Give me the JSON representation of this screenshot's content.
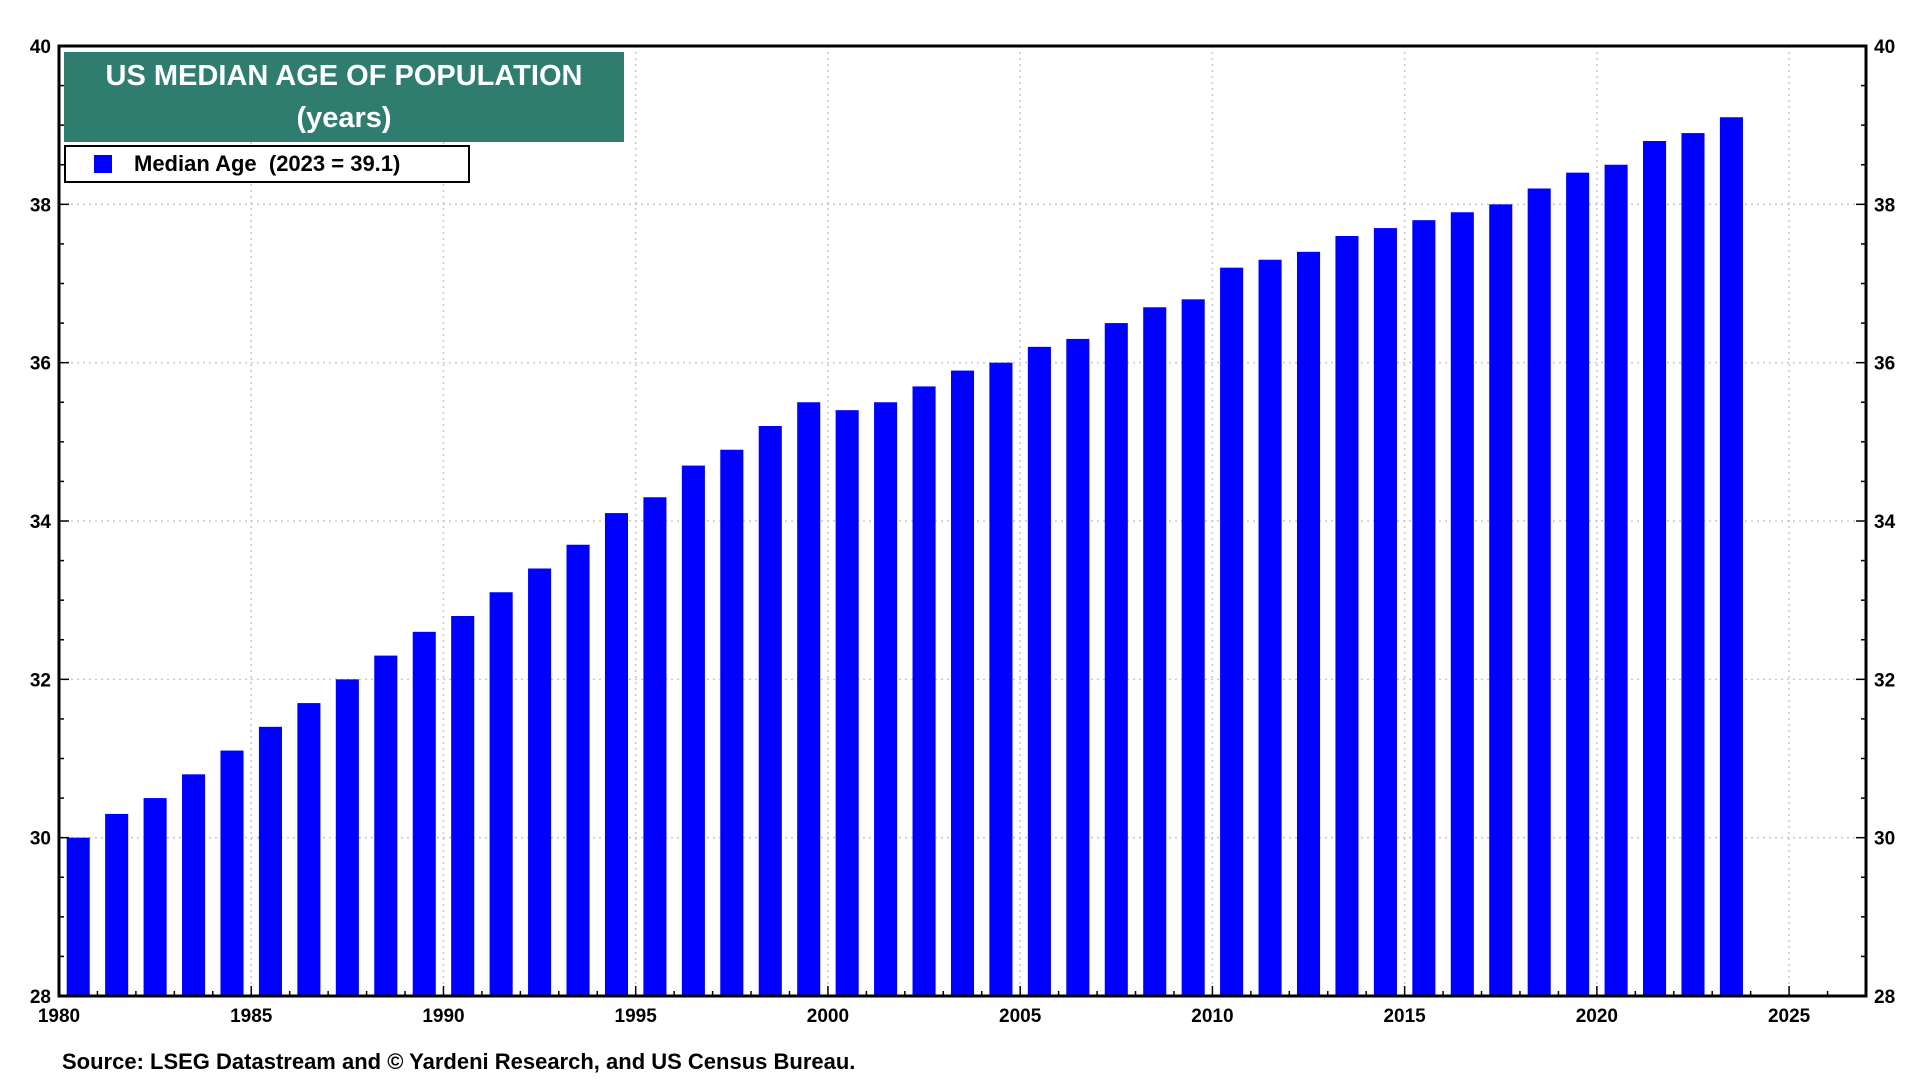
{
  "chart_data": {
    "type": "bar",
    "title": "US MEDIAN AGE OF POPULATION",
    "subtitle": "(years)",
    "legend": [
      {
        "label": "Median Age  (2023 = 39.1)",
        "color": "#0000ff"
      }
    ],
    "legend_position": "top-left",
    "x": [
      1980,
      1981,
      1982,
      1983,
      1984,
      1985,
      1986,
      1987,
      1988,
      1989,
      1990,
      1991,
      1992,
      1993,
      1994,
      1995,
      1996,
      1997,
      1998,
      1999,
      2000,
      2001,
      2002,
      2003,
      2004,
      2005,
      2006,
      2007,
      2008,
      2009,
      2010,
      2011,
      2012,
      2013,
      2014,
      2015,
      2016,
      2017,
      2018,
      2019,
      2020,
      2021,
      2022,
      2023
    ],
    "values": [
      30.0,
      30.3,
      30.5,
      30.8,
      31.1,
      31.4,
      31.7,
      32.0,
      32.3,
      32.6,
      32.8,
      33.1,
      33.4,
      33.7,
      34.1,
      34.3,
      34.7,
      34.9,
      35.2,
      35.5,
      35.4,
      35.5,
      35.7,
      35.9,
      36.0,
      36.2,
      36.3,
      36.5,
      36.7,
      36.8,
      37.2,
      37.3,
      37.4,
      37.6,
      37.7,
      37.8,
      37.9,
      38.0,
      38.2,
      38.4,
      38.5,
      38.8,
      38.9,
      39.1
    ],
    "xlim": [
      1980,
      2027
    ],
    "ylim": [
      28,
      40
    ],
    "x_ticks": [
      "1980",
      "1985",
      "1990",
      "1995",
      "2000",
      "2005",
      "2010",
      "2015",
      "2020",
      "2025"
    ],
    "y_ticks": [
      "28",
      "30",
      "32",
      "34",
      "36",
      "38",
      "40"
    ],
    "grid": true,
    "bar_color": "#0000ff",
    "title_bg": "#2e7d6f"
  },
  "source": "Source: LSEG Datastream and © Yardeni Research, and US Census Bureau."
}
